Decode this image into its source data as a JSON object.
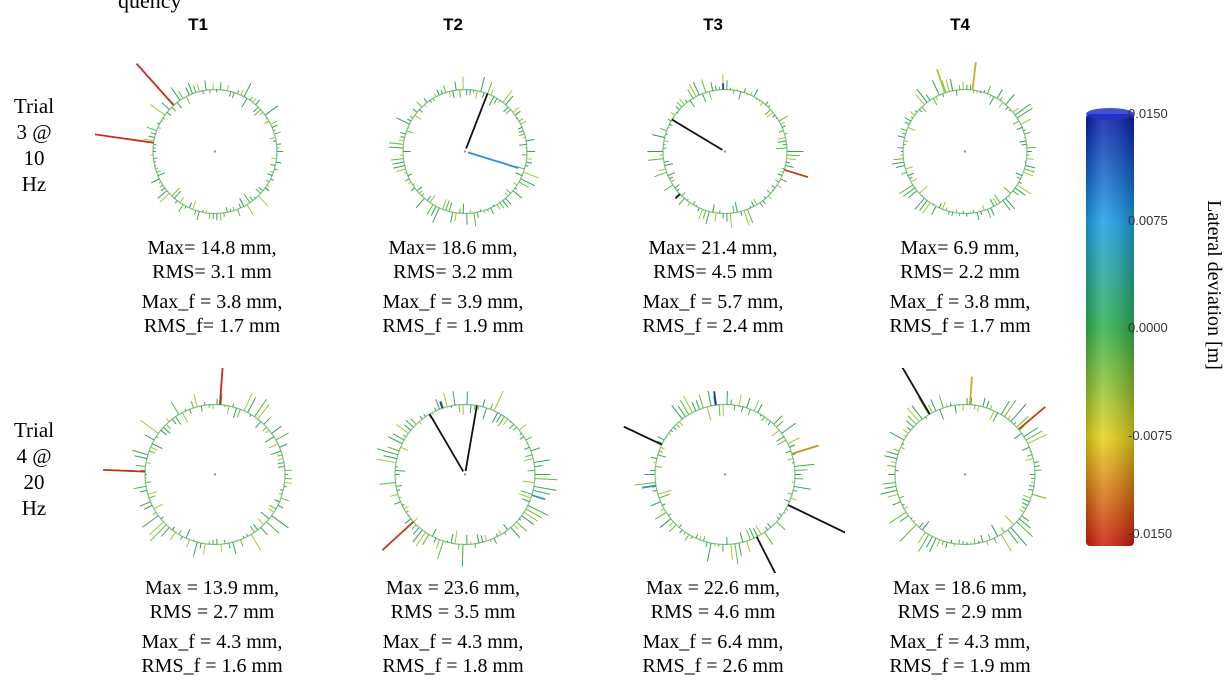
{
  "caption_fragment": "quency",
  "columns": [
    "T1",
    "T2",
    "T3",
    "T4"
  ],
  "rows": [
    {
      "label": [
        "Trial",
        "3 @",
        "10",
        "Hz"
      ],
      "cells": [
        {
          "l1": "Max= 14.8 mm,",
          "l2": "RMS= 3.1 mm",
          "l3": "Max_f = 3.8 mm,",
          "l4": "RMS_f= 1.7 mm"
        },
        {
          "l1": "Max= 18.6 mm,",
          "l2": "RMS= 3.2 mm",
          "l3": "Max_f = 3.9 mm,",
          "l4": "RMS_f = 1.9 mm"
        },
        {
          "l1": "Max= 21.4 mm,",
          "l2": "RMS= 4.5 mm",
          "l3": "Max_f = 5.7 mm,",
          "l4": "RMS_f = 2.4 mm"
        },
        {
          "l1": "Max= 6.9 mm,",
          "l2": "RMS= 2.2 mm",
          "l3": "Max_f = 3.8 mm,",
          "l4": "RMS_f = 1.7 mm"
        }
      ]
    },
    {
      "label": [
        "Trial",
        "4 @",
        "20",
        "Hz"
      ],
      "cells": [
        {
          "l1": "Max = 13.9 mm,",
          "l2": "RMS = 2.7 mm",
          "l3": "Max_f = 4.3 mm,",
          "l4": "RMS_f = 1.6 mm"
        },
        {
          "l1": "Max = 23.6 mm,",
          "l2": "RMS = 3.5 mm",
          "l3": "Max_f = 4.3 mm,",
          "l4": "RMS_f = 1.8 mm"
        },
        {
          "l1": "Max = 22.6 mm,",
          "l2": "RMS = 4.6 mm",
          "l3": "Max_f = 6.4 mm,",
          "l4": "RMS_f = 2.6 mm"
        },
        {
          "l1": "Max = 18.6 mm,",
          "l2": "RMS = 2.9 mm",
          "l3": "Max_f = 4.3 mm,",
          "l4": "RMS_f = 1.9 mm"
        }
      ]
    }
  ],
  "colorbar": {
    "title": "Lateral deviation [m]",
    "ticks": [
      "0.0150",
      "0.0075",
      "0.0000",
      "-0.0075",
      "-0.0150"
    ],
    "colors": [
      "#0a1aa8",
      "#1aa0e8",
      "#2fb24a",
      "#e6d21a",
      "#cc1a0a"
    ]
  }
}
